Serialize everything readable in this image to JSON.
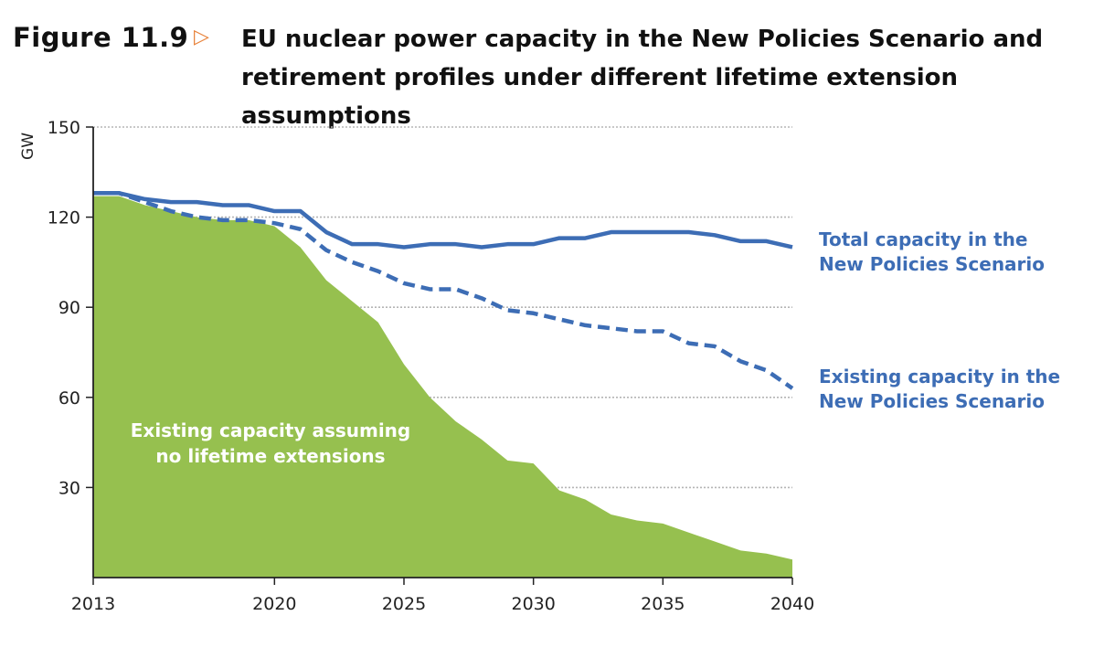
{
  "figure": {
    "label": "Figure 11.9",
    "arrow_icon": "triangle-right-outline",
    "title": "EU nuclear power capacity in the New Policies Scenario and retirement profiles under different lifetime extension assumptions"
  },
  "chart_data": {
    "type": "line",
    "title": "EU nuclear power capacity in the New Policies Scenario and retirement profiles under different lifetime extension assumptions",
    "ylabel": "GW",
    "xlabel": "",
    "xlim": [
      2013,
      2040
    ],
    "ylim": [
      0,
      150
    ],
    "x_ticks": [
      2013,
      2020,
      2025,
      2030,
      2035,
      2040
    ],
    "y_ticks": [
      30,
      60,
      90,
      120,
      150
    ],
    "grid": "horizontal dotted",
    "x": [
      2013,
      2014,
      2015,
      2016,
      2017,
      2018,
      2019,
      2020,
      2021,
      2022,
      2023,
      2024,
      2025,
      2026,
      2027,
      2028,
      2029,
      2030,
      2031,
      2032,
      2033,
      2034,
      2035,
      2036,
      2037,
      2038,
      2039,
      2040
    ],
    "series": [
      {
        "name": "Total capacity in the New Policies Scenario",
        "label_lines": [
          "Total capacity in the",
          "New Policies Scenario"
        ],
        "style": "solid",
        "color": "#3d6db5",
        "values": [
          128,
          128,
          126,
          125,
          125,
          124,
          124,
          122,
          122,
          115,
          111,
          111,
          110,
          111,
          111,
          110,
          111,
          111,
          113,
          113,
          115,
          115,
          115,
          115,
          114,
          112,
          112,
          110
        ]
      },
      {
        "name": "Existing capacity in the New Policies Scenario",
        "label_lines": [
          "Existing capacity in the",
          "New Policies Scenario"
        ],
        "style": "dashed",
        "color": "#3d6db5",
        "values": [
          128,
          128,
          125,
          122,
          120,
          119,
          119,
          118,
          116,
          109,
          105,
          102,
          98,
          96,
          96,
          93,
          89,
          88,
          86,
          84,
          83,
          82,
          82,
          78,
          77,
          72,
          69,
          63
        ]
      },
      {
        "name": "Existing capacity assuming no lifetime extensions",
        "label_lines": [
          "Existing capacity assuming",
          "no lifetime extensions"
        ],
        "style": "area",
        "color": "#96c04f",
        "values": [
          127,
          127,
          124,
          122,
          120,
          119,
          119,
          117,
          110,
          99,
          92,
          85,
          71,
          60,
          52,
          46,
          39,
          38,
          29,
          26,
          21,
          19,
          18,
          15,
          12,
          9,
          8,
          6
        ]
      }
    ]
  }
}
